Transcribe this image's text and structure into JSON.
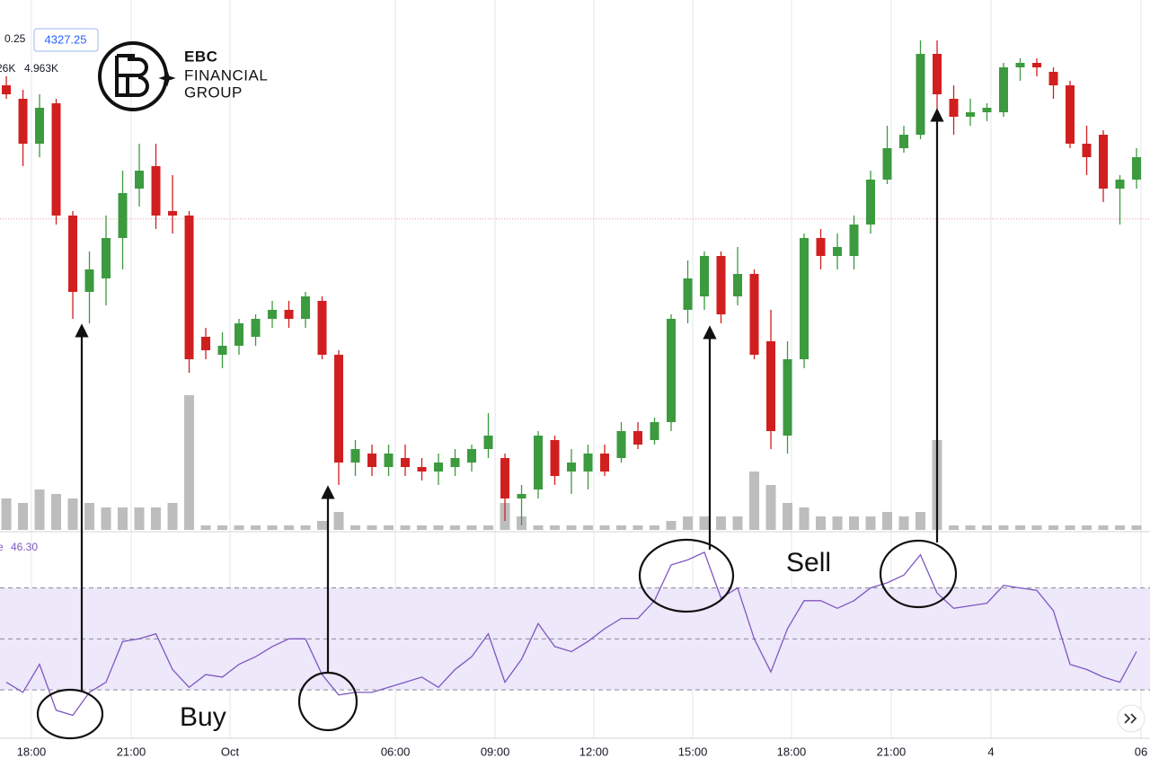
{
  "header": {
    "change": "0.25",
    "volume_prev": "26K",
    "volume": "4.963K",
    "rsi_source_tail": "e",
    "rsi_value": "46.30"
  },
  "logo": {
    "line1": "EBC",
    "line2": "FINANCIAL",
    "line3": "GROUP"
  },
  "annotations": {
    "buy": "Buy",
    "sell": "Sell"
  },
  "chart_data": [
    {
      "type": "candlestick",
      "last_price": 4327.25,
      "up_color": "#3c9a3f",
      "down_color": "#d11f1f",
      "volume_color": "#bdbdbd",
      "last_price_color": "#e5a0a0",
      "xlim": [
        -0.38,
        68.81
      ],
      "ylim": [
        4258,
        4370
      ],
      "y2lim": [
        0,
        112
      ],
      "xticks": [
        {
          "value": 1.51,
          "label": "18:00"
        },
        {
          "value": 7.51,
          "label": "21:00"
        },
        {
          "value": 13.46,
          "label": "Oct"
        },
        {
          "value": 23.41,
          "label": "06:00"
        },
        {
          "value": 29.41,
          "label": "09:00"
        },
        {
          "value": 35.35,
          "label": "12:00"
        },
        {
          "value": 41.3,
          "label": "15:00"
        },
        {
          "value": 47.24,
          "label": "18:00"
        },
        {
          "value": 53.24,
          "label": "21:00"
        },
        {
          "value": 59.24,
          "label": "4"
        },
        {
          "value": 68.27,
          "label": "06"
        }
      ],
      "grid": true,
      "open": [
        4357,
        4354,
        4344,
        4353,
        4328,
        4311,
        4314,
        4323,
        4334,
        4339,
        4329,
        4328,
        4301,
        4297,
        4299,
        4301,
        4305,
        4307,
        4305,
        4309,
        4297,
        4273,
        4275,
        4272,
        4274,
        4272,
        4271,
        4272,
        4273,
        4276,
        4274,
        4265,
        4267,
        4278,
        4271,
        4271,
        4275,
        4274,
        4280,
        4278,
        4282,
        4307,
        4310,
        4319,
        4310,
        4315,
        4300,
        4279,
        4296,
        4323,
        4319,
        4319,
        4326,
        4336,
        4343,
        4346,
        4364,
        4354,
        4350,
        4351,
        4351,
        4361,
        4362,
        4360,
        4357,
        4344,
        4346,
        4334,
        4336
      ],
      "high": [
        4359,
        4356,
        4355,
        4354,
        4329,
        4320,
        4328,
        4338,
        4344,
        4344,
        4337,
        4329,
        4303,
        4302,
        4305,
        4306,
        4309,
        4309,
        4311,
        4310,
        4298,
        4278,
        4277,
        4277,
        4277,
        4274,
        4275,
        4276,
        4277,
        4284,
        4275,
        4268,
        4280,
        4279,
        4276,
        4277,
        4277,
        4282,
        4282,
        4283,
        4306,
        4318,
        4320,
        4320,
        4321,
        4316,
        4307,
        4300,
        4324,
        4325,
        4324,
        4328,
        4338,
        4348,
        4348,
        4367,
        4367,
        4357,
        4354,
        4353,
        4362,
        4363,
        4363,
        4361,
        4358,
        4348,
        4347,
        4337,
        4343
      ],
      "low": [
        4354,
        4339,
        4341,
        4326,
        4305,
        4304,
        4308,
        4316,
        4330,
        4325,
        4324,
        4293,
        4296,
        4294,
        4297,
        4299,
        4303,
        4303,
        4303,
        4296,
        4268,
        4270,
        4270,
        4270,
        4270,
        4269,
        4268,
        4270,
        4271,
        4274,
        4260,
        4259,
        4265,
        4268,
        4266,
        4267,
        4270,
        4273,
        4276,
        4277,
        4280,
        4304,
        4307,
        4304,
        4308,
        4296,
        4276,
        4275,
        4294,
        4316,
        4316,
        4316,
        4324,
        4335,
        4342,
        4345,
        4350,
        4346,
        4348,
        4349,
        4350,
        4358,
        4359,
        4354,
        4343,
        4337,
        4331,
        4326,
        4334
      ],
      "close": [
        4355,
        4344,
        4352,
        4328,
        4311,
        4316,
        4323,
        4333,
        4338,
        4328,
        4328,
        4296,
        4298,
        4299,
        4304,
        4305,
        4307,
        4305,
        4310,
        4297,
        4273,
        4276,
        4272,
        4275,
        4272,
        4271,
        4273,
        4274,
        4276,
        4279,
        4265,
        4266,
        4279,
        4270,
        4273,
        4275,
        4271,
        4280,
        4277,
        4282,
        4305,
        4314,
        4319,
        4306,
        4315,
        4297,
        4280,
        4296,
        4323,
        4319,
        4321,
        4326,
        4336,
        4343,
        4346,
        4364,
        4355,
        4350,
        4351,
        4352,
        4361,
        4362,
        4361,
        4357,
        4344,
        4341,
        4334,
        4336,
        4341
      ],
      "volume": [
        7,
        6,
        9,
        8,
        7,
        6,
        5,
        5,
        5,
        5,
        6,
        30,
        1,
        1,
        1,
        1,
        1,
        1,
        1,
        2,
        4,
        1,
        1,
        1,
        1,
        1,
        1,
        1,
        1,
        1,
        6,
        3,
        1,
        1,
        1,
        1,
        1,
        1,
        1,
        1,
        2,
        3,
        3,
        3,
        3,
        13,
        10,
        6,
        5,
        3,
        3,
        3,
        3,
        4,
        3,
        4,
        20,
        1,
        1,
        1,
        1,
        1,
        1,
        1,
        1,
        1,
        1,
        1,
        1
      ]
    },
    {
      "type": "line",
      "color": "#7e57c2",
      "band_color": "#ede8fa",
      "ylim": [
        11,
        91
      ],
      "levels": [
        70,
        50,
        30
      ],
      "values": [
        33,
        29,
        40,
        22,
        20,
        29,
        33,
        49,
        50,
        52,
        38,
        31,
        36,
        35,
        40,
        43,
        47,
        50,
        50,
        36,
        28,
        29,
        29,
        31,
        33,
        35,
        31,
        38,
        43,
        52,
        33,
        42,
        56,
        47,
        45,
        49,
        54,
        58,
        58,
        65,
        79,
        81,
        84,
        66,
        70,
        50,
        37,
        54,
        65,
        65,
        62,
        65,
        70,
        72,
        75,
        83,
        68,
        62,
        63,
        64,
        71,
        70,
        69,
        61,
        40,
        38,
        35,
        33,
        45
      ]
    }
  ]
}
